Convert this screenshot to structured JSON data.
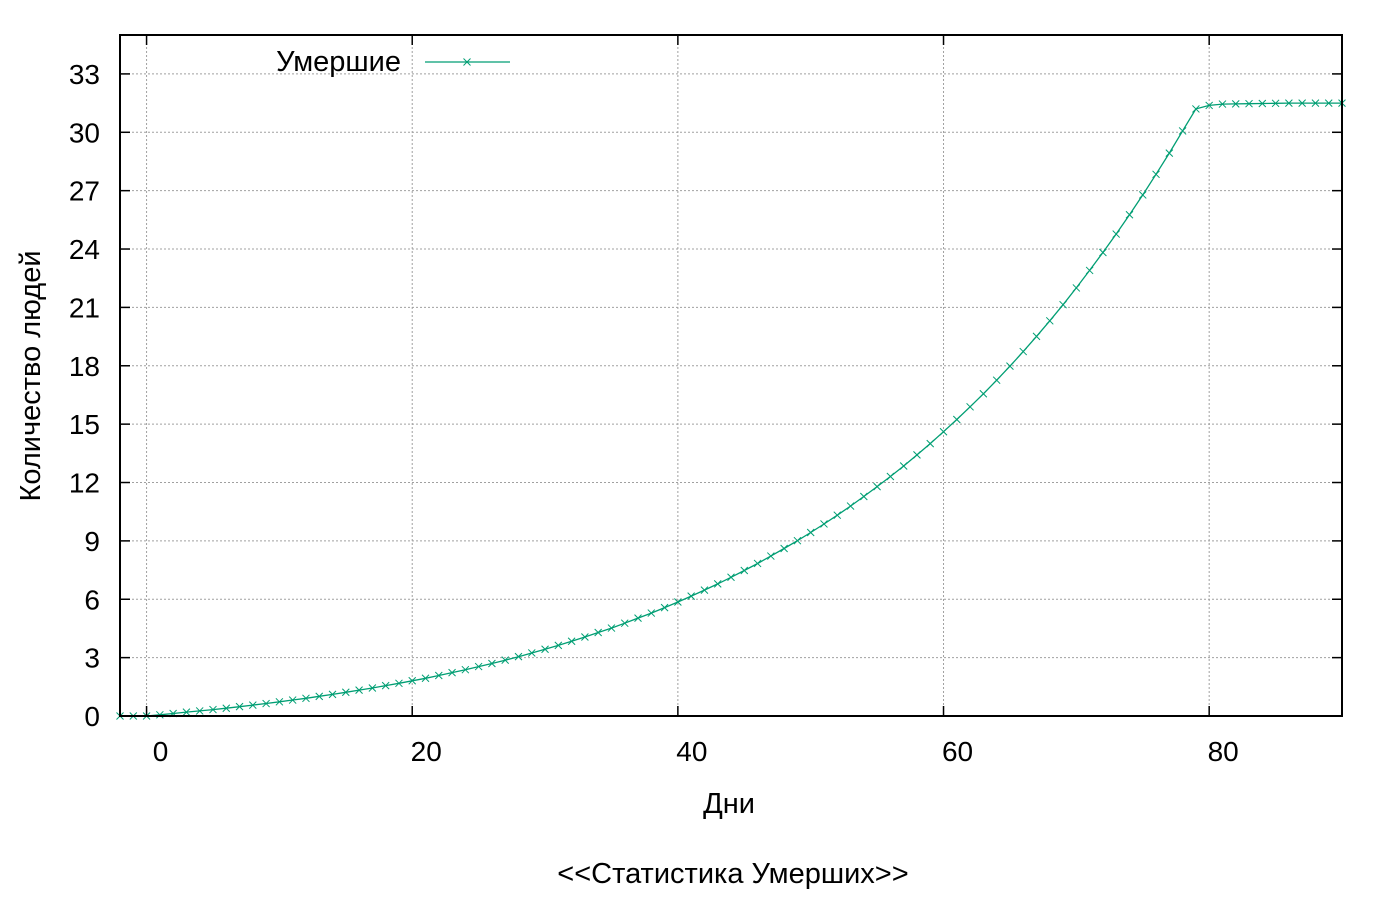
{
  "chart_data": {
    "type": "line",
    "title": "<<Статистика Умерших>>",
    "xlabel": "Дни",
    "ylabel": "Количество людей",
    "xlim": [
      -2,
      90
    ],
    "ylim": [
      0,
      35
    ],
    "xticks": [
      0,
      20,
      40,
      60,
      80
    ],
    "yticks": [
      0,
      3,
      6,
      9,
      12,
      15,
      18,
      21,
      24,
      27,
      30,
      33
    ],
    "grid": true,
    "legend_position": "top-left",
    "series": [
      {
        "name": "Умершие",
        "color": "#009e73",
        "marker": "x",
        "x": [
          -2,
          -1,
          0,
          1,
          2,
          3,
          4,
          5,
          6,
          7,
          8,
          9,
          10,
          11,
          12,
          13,
          14,
          15,
          16,
          17,
          18,
          19,
          20,
          21,
          22,
          23,
          24,
          25,
          26,
          27,
          28,
          29,
          30,
          31,
          32,
          33,
          34,
          35,
          36,
          37,
          38,
          39,
          40,
          41,
          42,
          43,
          44,
          45,
          46,
          47,
          48,
          49,
          50,
          51,
          52,
          53,
          54,
          55,
          56,
          57,
          58,
          59,
          60,
          61,
          62,
          63,
          64,
          65,
          66,
          67,
          68,
          69,
          70,
          71,
          72,
          73,
          74,
          75,
          76,
          77,
          78,
          79,
          80,
          81,
          82,
          83,
          84,
          85,
          86,
          87,
          88,
          89,
          90
        ],
        "y": [
          0,
          0,
          0,
          0.06,
          0.13,
          0.2,
          0.26,
          0.33,
          0.4,
          0.48,
          0.56,
          0.64,
          0.73,
          0.82,
          0.91,
          1.01,
          1.11,
          1.22,
          1.33,
          1.44,
          1.56,
          1.68,
          1.81,
          1.94,
          2.08,
          2.23,
          2.38,
          2.54,
          2.7,
          2.87,
          3.05,
          3.24,
          3.43,
          3.63,
          3.84,
          4.06,
          4.29,
          4.52,
          4.77,
          5.03,
          5.29,
          5.57,
          5.86,
          6.16,
          6.47,
          6.79,
          7.13,
          7.48,
          7.84,
          8.22,
          8.61,
          9.01,
          9.43,
          9.87,
          10.32,
          10.79,
          11.28,
          11.79,
          12.31,
          12.85,
          13.42,
          14.0,
          14.61,
          15.24,
          15.89,
          16.56,
          17.26,
          17.98,
          18.73,
          19.51,
          20.31,
          21.14,
          22.0,
          22.9,
          23.82,
          24.77,
          25.76,
          26.78,
          27.84,
          28.93,
          30.07,
          31.2,
          31.38,
          31.45,
          31.46,
          31.47,
          31.48,
          31.49,
          31.5,
          31.5,
          31.5,
          31.5,
          31.5
        ]
      }
    ]
  }
}
